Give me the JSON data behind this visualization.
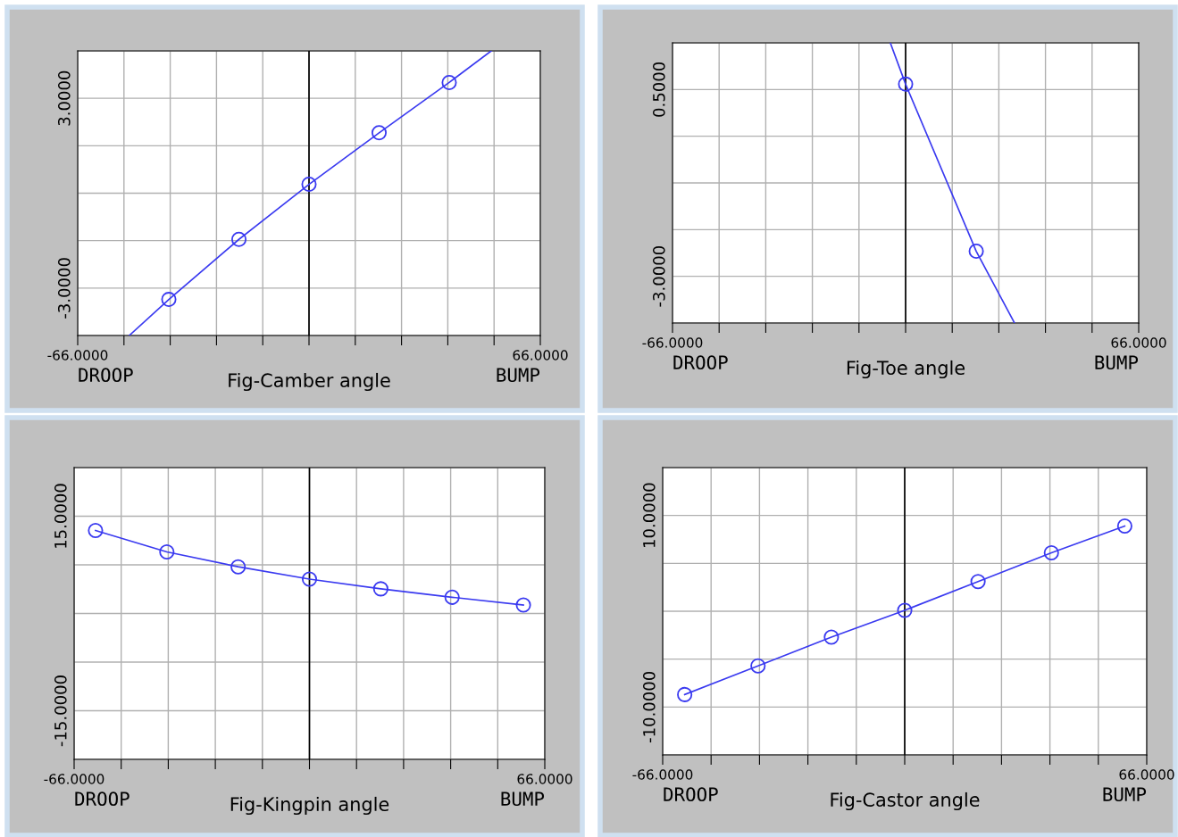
{
  "chart_data": [
    {
      "type": "line",
      "title": "Fig-Camber angle",
      "annotations": [
        "DROOP",
        "BUMP"
      ],
      "xlim": [
        -66,
        66
      ],
      "xticks": [
        {
          "value": -66,
          "label": "-66.0000"
        },
        {
          "value": -52.8,
          "label": null
        },
        {
          "value": -39.6,
          "label": null
        },
        {
          "value": -26.4,
          "label": null
        },
        {
          "value": -13.2,
          "label": null
        },
        {
          "value": 0,
          "label": null
        },
        {
          "value": 13.2,
          "label": null
        },
        {
          "value": 26.4,
          "label": null
        },
        {
          "value": 39.6,
          "label": null
        },
        {
          "value": 52.8,
          "label": null
        },
        {
          "value": 66,
          "label": "66.0000"
        }
      ],
      "ylim": [
        -4.5,
        4.5
      ],
      "yticks": [
        {
          "value": -4.5,
          "label": null
        },
        {
          "value": -3,
          "label": "-3.0000"
        },
        {
          "value": -1.5,
          "label": null
        },
        {
          "value": 0,
          "label": null
        },
        {
          "value": 1.5,
          "label": null
        },
        {
          "value": 3,
          "label": "3.0000"
        },
        {
          "value": 4.5,
          "label": null
        }
      ],
      "grid": true,
      "ref_lines": [
        {
          "axis": "x",
          "value": 0,
          "color": "#000000"
        }
      ],
      "series": [
        {
          "color": "#3a3af0",
          "marker": "none",
          "x": [
            -51.3,
            -40,
            -20,
            0,
            20,
            40,
            52
          ],
          "values": [
            -4.5,
            -3.36,
            -1.46,
            0.28,
            1.91,
            3.5,
            4.5
          ]
        },
        {
          "type": "scatter",
          "color": "#3a3af0",
          "marker": "circle",
          "x": [
            -40,
            -20,
            0,
            20,
            40
          ],
          "values": [
            -3.36,
            -1.46,
            0.28,
            1.91,
            3.5
          ]
        }
      ]
    },
    {
      "type": "line",
      "title": "Fig-Toe angle",
      "annotations": [
        "DROOP",
        "BUMP"
      ],
      "xlim": [
        -66,
        66
      ],
      "xticks": [
        {
          "value": -66,
          "label": "-66.0000"
        },
        {
          "value": -52.8,
          "label": null
        },
        {
          "value": -39.6,
          "label": null
        },
        {
          "value": -26.4,
          "label": null
        },
        {
          "value": -13.2,
          "label": null
        },
        {
          "value": 0,
          "label": null
        },
        {
          "value": 13.2,
          "label": null
        },
        {
          "value": 26.4,
          "label": null
        },
        {
          "value": 39.6,
          "label": null
        },
        {
          "value": 52.8,
          "label": null
        },
        {
          "value": 66,
          "label": "66.0000"
        }
      ],
      "ylim": [
        -3.875,
        1.375
      ],
      "yticks": [
        {
          "value": -3.875,
          "label": null
        },
        {
          "value": -3,
          "label": "-3.0000"
        },
        {
          "value": -2.125,
          "label": null
        },
        {
          "value": -1.25,
          "label": null
        },
        {
          "value": -0.375,
          "label": null
        },
        {
          "value": 0.5,
          "label": "0.5000"
        },
        {
          "value": 1.375,
          "label": null
        }
      ],
      "grid": true,
      "ref_lines": [
        {
          "axis": "x",
          "value": 0,
          "color": "#000000"
        }
      ],
      "series": [
        {
          "color": "#3a3af0",
          "marker": "none",
          "x": [
            -4.3,
            0,
            20,
            30.8
          ],
          "values": [
            1.37,
            0.6,
            -2.53,
            -3.87
          ]
        },
        {
          "type": "scatter",
          "color": "#3a3af0",
          "marker": "circle",
          "x": [
            0,
            20
          ],
          "values": [
            0.6,
            -2.53
          ]
        }
      ]
    },
    {
      "type": "line",
      "title": "Fig-Kingpin angle",
      "annotations": [
        "DROOP",
        "BUMP"
      ],
      "xlim": [
        -66,
        66
      ],
      "xticks": [
        {
          "value": -66,
          "label": "-66.0000"
        },
        {
          "value": -52.8,
          "label": null
        },
        {
          "value": -39.6,
          "label": null
        },
        {
          "value": -26.4,
          "label": null
        },
        {
          "value": -13.2,
          "label": null
        },
        {
          "value": 0,
          "label": null
        },
        {
          "value": 13.2,
          "label": null
        },
        {
          "value": 26.4,
          "label": null
        },
        {
          "value": 39.6,
          "label": null
        },
        {
          "value": 52.8,
          "label": null
        },
        {
          "value": 66,
          "label": "66.0000"
        }
      ],
      "ylim": [
        -22.5,
        22.5
      ],
      "yticks": [
        {
          "value": -22.5,
          "label": null
        },
        {
          "value": -15,
          "label": "-15.0000"
        },
        {
          "value": -7.5,
          "label": null
        },
        {
          "value": 0,
          "label": null
        },
        {
          "value": 7.5,
          "label": null
        },
        {
          "value": 15,
          "label": "15.0000"
        },
        {
          "value": 22.5,
          "label": null
        }
      ],
      "grid": true,
      "ref_lines": [
        {
          "axis": "x",
          "value": 0,
          "color": "#000000"
        }
      ],
      "series": [
        {
          "color": "#3a3af0",
          "marker": "circle",
          "x": [
            -60,
            -40,
            -20,
            0,
            20,
            40,
            60
          ],
          "values": [
            12.8,
            9.5,
            7.2,
            5.3,
            3.8,
            2.5,
            1.3
          ]
        }
      ]
    },
    {
      "type": "line",
      "title": "Fig-Castor angle",
      "annotations": [
        "DROOP",
        "BUMP"
      ],
      "xlim": [
        -66,
        66
      ],
      "xticks": [
        {
          "value": -66,
          "label": "-66.0000"
        },
        {
          "value": -52.8,
          "label": null
        },
        {
          "value": -39.6,
          "label": null
        },
        {
          "value": -26.4,
          "label": null
        },
        {
          "value": -13.2,
          "label": null
        },
        {
          "value": 0,
          "label": null
        },
        {
          "value": 13.2,
          "label": null
        },
        {
          "value": 26.4,
          "label": null
        },
        {
          "value": 39.6,
          "label": null
        },
        {
          "value": 52.8,
          "label": null
        },
        {
          "value": 66,
          "label": "66.0000"
        }
      ],
      "ylim": [
        -15,
        15
      ],
      "yticks": [
        {
          "value": -15,
          "label": null
        },
        {
          "value": -10,
          "label": "-10.0000"
        },
        {
          "value": -5,
          "label": null
        },
        {
          "value": 0,
          "label": null
        },
        {
          "value": 5,
          "label": null
        },
        {
          "value": 10,
          "label": "10.0000"
        },
        {
          "value": 15,
          "label": null
        }
      ],
      "grid": true,
      "ref_lines": [
        {
          "axis": "x",
          "value": 0,
          "color": "#000000"
        }
      ],
      "series": [
        {
          "color": "#3a3af0",
          "marker": "circle",
          "x": [
            -60,
            -40,
            -20,
            0,
            20,
            40,
            60
          ],
          "values": [
            -8.7,
            -5.7,
            -2.7,
            0.1,
            3.1,
            6.1,
            8.9
          ]
        }
      ]
    }
  ]
}
